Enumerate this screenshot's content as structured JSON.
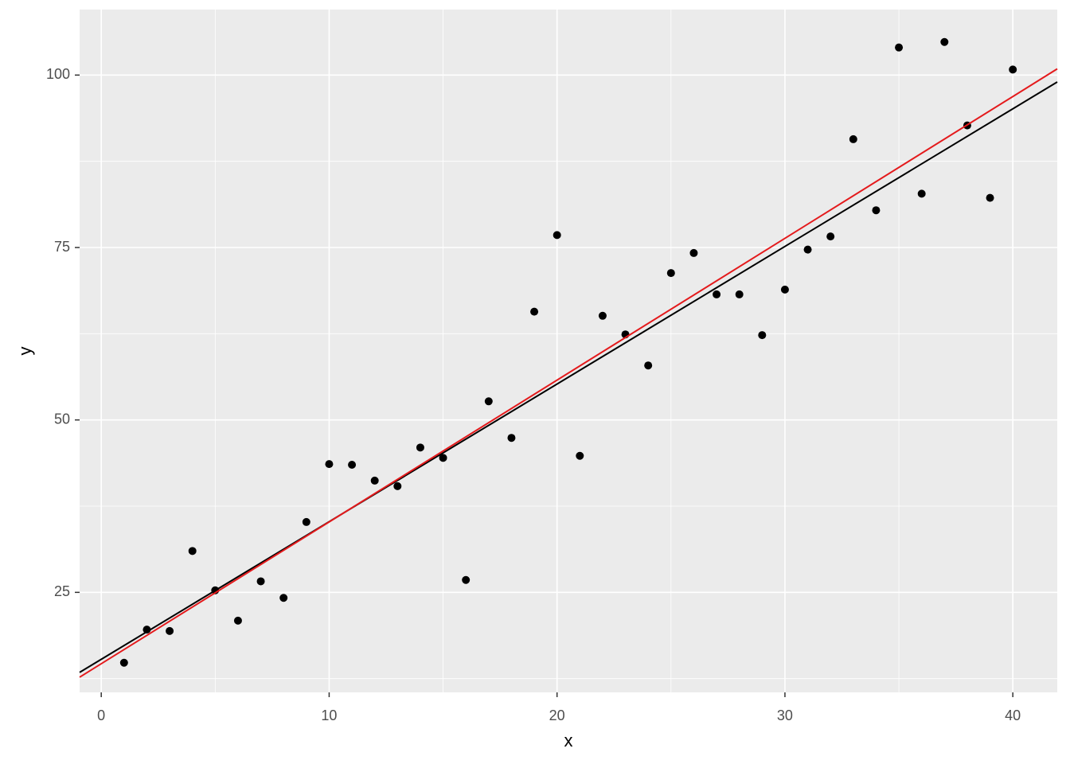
{
  "chart_data": {
    "type": "scatter",
    "x_label": "x",
    "y_label": "y",
    "x": [
      1,
      2,
      3,
      4,
      5,
      6,
      7,
      8,
      9,
      10,
      11,
      12,
      13,
      14,
      15,
      16,
      17,
      18,
      19,
      20,
      21,
      22,
      23,
      24,
      25,
      26,
      27,
      28,
      29,
      30,
      31,
      32,
      33,
      34,
      35,
      36,
      37,
      38,
      39,
      40
    ],
    "values": [
      14.8,
      19.6,
      19.4,
      31.0,
      25.3,
      20.9,
      26.6,
      24.2,
      35.2,
      43.6,
      43.5,
      41.2,
      40.4,
      46.0,
      44.5,
      26.8,
      52.7,
      47.4,
      65.7,
      76.8,
      44.8,
      65.1,
      62.4,
      57.9,
      71.3,
      74.2,
      68.2,
      68.2,
      62.3,
      68.9,
      74.7,
      76.6,
      90.7,
      80.4,
      104.0,
      82.8,
      104.8,
      92.7,
      82.2,
      100.8
    ],
    "color": "#000000",
    "lines": [
      {
        "color": "#000000",
        "x": [
          -0.95,
          41.95
        ],
        "values": [
          13.4,
          99.0
        ]
      },
      {
        "color": "#e41a1c",
        "x": [
          -0.95,
          41.95
        ],
        "values": [
          12.7,
          100.9
        ]
      }
    ],
    "xlim": [
      -0.95,
      41.95
    ],
    "ylim": [
      10.5,
      109.5
    ],
    "xticks": [
      0,
      10,
      20,
      30,
      40
    ],
    "yticks": [
      25,
      50,
      75,
      100
    ],
    "minor_xticks": [
      5,
      15,
      25,
      35
    ],
    "minor_yticks": [
      12.5,
      37.5,
      62.5,
      87.5
    ],
    "grid": true
  }
}
